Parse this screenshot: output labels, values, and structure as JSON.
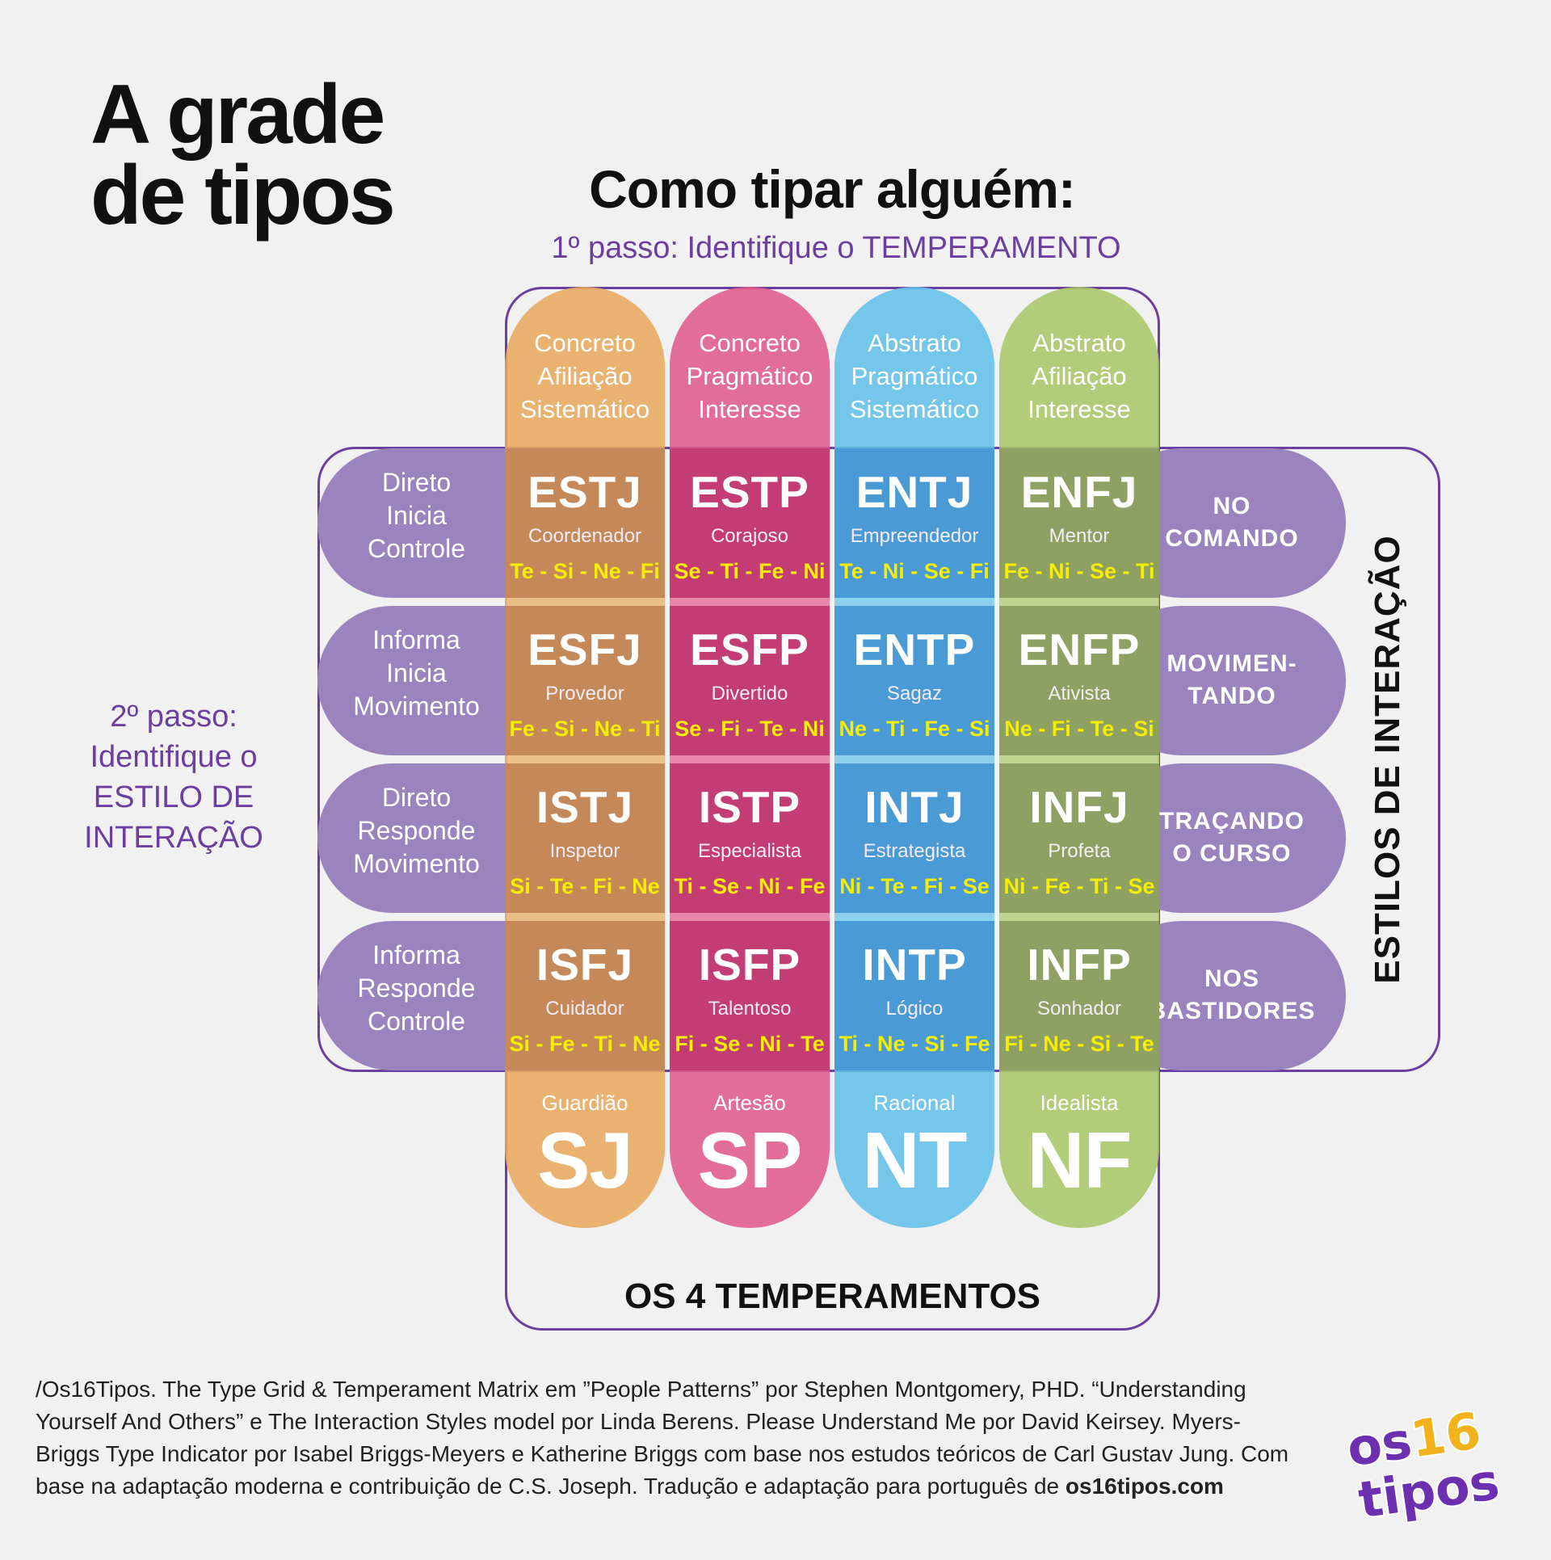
{
  "title": {
    "line1": "A grade",
    "line2": "de tipos"
  },
  "how_to": "Como tipar alguém:",
  "step1": "1º passo: Identifique o TEMPERAMENTO",
  "step2": {
    "line1": "2º passo:",
    "line2": "Identifique o",
    "line3": "ESTILO DE",
    "line4": "INTERAÇÃO"
  },
  "columns": [
    {
      "head": [
        "Concreto",
        "Afiliação",
        "Sistemático"
      ],
      "color": "#e8a85e",
      "cell_color": "#c58858",
      "temp_name": "Guardião",
      "temp_code": "SJ"
    },
    {
      "head": [
        "Concreto",
        "Pragmático",
        "Interesse"
      ],
      "color": "#e05a8c",
      "cell_color": "#c33c73",
      "temp_name": "Artesão",
      "temp_code": "SP"
    },
    {
      "head": [
        "Abstrato",
        "Pragmático",
        "Sistemático"
      ],
      "color": "#62bfe8",
      "cell_color": "#4a9ad5",
      "temp_name": "Racional",
      "temp_code": "NT"
    },
    {
      "head": [
        "Abstrato",
        "Afiliação",
        "Interesse"
      ],
      "color": "#a7c768",
      "cell_color": "#8ea162",
      "temp_name": "Idealista",
      "temp_code": "NF"
    }
  ],
  "rows": [
    {
      "left": [
        "Direto",
        "Inicia",
        "Controle"
      ],
      "right": [
        "NO",
        "COMANDO"
      ]
    },
    {
      "left": [
        "Informa",
        "Inicia",
        "Movimento"
      ],
      "right": [
        "MOVIMEN-",
        "TANDO"
      ]
    },
    {
      "left": [
        "Direto",
        "Responde",
        "Movimento"
      ],
      "right": [
        "TRAÇANDO",
        "O CURSO"
      ]
    },
    {
      "left": [
        "Informa",
        "Responde",
        "Controle"
      ],
      "right": [
        "NOS",
        "BASTIDORES"
      ]
    }
  ],
  "types": [
    [
      {
        "code": "ESTJ",
        "name": "Coordenador",
        "functions": "Te - Si - Ne - Fi"
      },
      {
        "code": "ESTP",
        "name": "Corajoso",
        "functions": "Se - Ti - Fe - Ni"
      },
      {
        "code": "ENTJ",
        "name": "Empreendedor",
        "functions": "Te - Ni - Se - Fi"
      },
      {
        "code": "ENFJ",
        "name": "Mentor",
        "functions": "Fe - Ni - Se - Ti"
      }
    ],
    [
      {
        "code": "ESFJ",
        "name": "Provedor",
        "functions": "Fe - Si - Ne - Ti"
      },
      {
        "code": "ESFP",
        "name": "Divertido",
        "functions": "Se - Fi - Te - Ni"
      },
      {
        "code": "ENTP",
        "name": "Sagaz",
        "functions": "Ne - Ti - Fe - Si"
      },
      {
        "code": "ENFP",
        "name": "Ativista",
        "functions": "Ne - Fi - Te - Si"
      }
    ],
    [
      {
        "code": "ISTJ",
        "name": "Inspetor",
        "functions": "Si - Te - Fi - Ne"
      },
      {
        "code": "ISTP",
        "name": "Especialista",
        "functions": "Ti - Se - Ni - Fe"
      },
      {
        "code": "INTJ",
        "name": "Estrategista",
        "functions": "Ni - Te - Fi - Se"
      },
      {
        "code": "INFJ",
        "name": "Profeta",
        "functions": "Ni - Fe - Ti - Se"
      }
    ],
    [
      {
        "code": "ISFJ",
        "name": "Cuidador",
        "functions": "Si - Fe - Ti - Ne"
      },
      {
        "code": "ISFP",
        "name": "Talentoso",
        "functions": "Fi - Se - Ni - Te"
      },
      {
        "code": "INTP",
        "name": "Lógico",
        "functions": "Ti - Ne - Si - Fe"
      },
      {
        "code": "INFP",
        "name": "Sonhador",
        "functions": "Fi - Ne - Si - Te"
      }
    ]
  ],
  "four_temperaments": "OS 4 TEMPERAMENTOS",
  "interaction_styles": "ESTILOS DE INTERAÇÃO",
  "credits": {
    "text": "/Os16Tipos.  The Type Grid & Temperament Matrix em ”People Patterns” por Stephen Montgomery, PHD. “Understanding Yourself And Others” e The Interaction Styles model por Linda Berens. Please Understand Me por David Keirsey. Myers-Briggs Type Indicator por Isabel Briggs-Meyers e Katherine Briggs com base nos estudos teóricos de Carl Gustav Jung. Com base na adaptação moderna e contribuição de C.S. Joseph. Tradução e adaptação para português de ",
    "site": "os16tipos.com"
  },
  "logo": {
    "top": "os16",
    "bottom": "tipos",
    "color_main": "#6b2fb0",
    "color_accent": "#f2b21c"
  }
}
